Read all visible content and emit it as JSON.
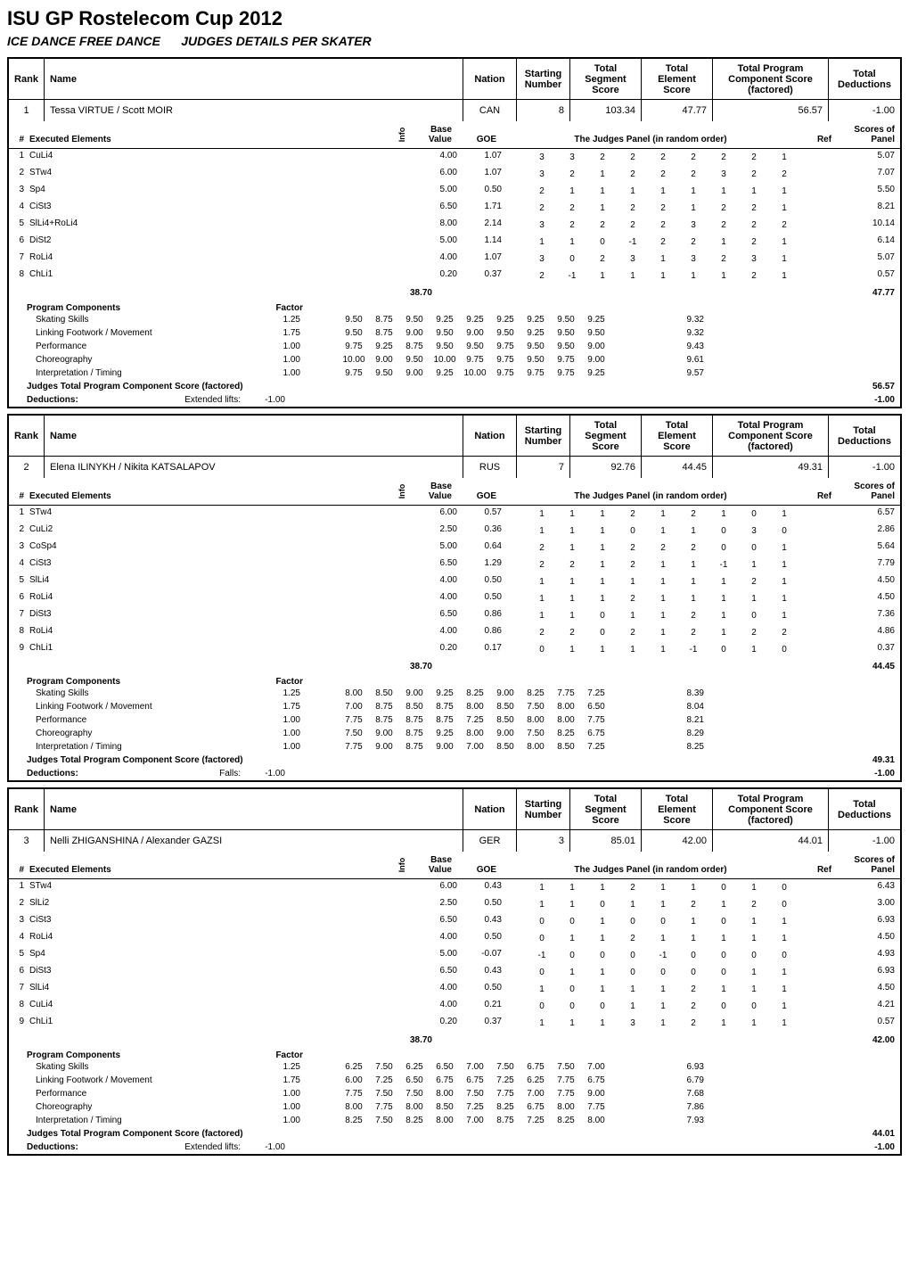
{
  "title": "ISU GP Rostelecom Cup 2012",
  "subtitle_left": "ICE DANCE FREE DANCE",
  "subtitle_right": "JUDGES DETAILS PER SKATER",
  "header_labels": {
    "rank": "Rank",
    "name": "Name",
    "nation": "Nation",
    "starting_number": "Starting Number",
    "total_segment": "Total Segment Score",
    "total_element": "Total Element Score",
    "total_pc": "Total Program Component Score (factored)",
    "total_ded": "Total Deductions"
  },
  "sub_labels": {
    "num": "#",
    "executed": "Executed Elements",
    "info": "Info",
    "base": "Base Value",
    "goe": "GOE",
    "judges": "The Judges Panel (in random order)",
    "ref": "Ref",
    "sop": "Scores of Panel"
  },
  "pc_header": "Program Components",
  "pc_factor_label": "Factor",
  "pc_total_label": "Judges Total Program Component Score (factored)",
  "deductions_label": "Deductions:",
  "colors": {
    "text": "#000000",
    "bg": "#ffffff",
    "border": "#000000"
  },
  "skaters": [
    {
      "rank": "1",
      "name": "Tessa VIRTUE / Scott MOIR",
      "nation": "CAN",
      "start_num": "8",
      "total_segment": "103.34",
      "total_element": "47.77",
      "total_pc": "56.57",
      "total_ded": "-1.00",
      "elements": [
        {
          "n": "1",
          "el": "CuLi4",
          "info": "",
          "base": "4.00",
          "goe": "1.07",
          "j": [
            "3",
            "3",
            "2",
            "2",
            "2",
            "2",
            "2",
            "2",
            "1"
          ],
          "sop": "5.07"
        },
        {
          "n": "2",
          "el": "STw4",
          "info": "",
          "base": "6.00",
          "goe": "1.07",
          "j": [
            "3",
            "2",
            "1",
            "2",
            "2",
            "2",
            "3",
            "2",
            "2"
          ],
          "sop": "7.07"
        },
        {
          "n": "3",
          "el": "Sp4",
          "info": "",
          "base": "5.00",
          "goe": "0.50",
          "j": [
            "2",
            "1",
            "1",
            "1",
            "1",
            "1",
            "1",
            "1",
            "1"
          ],
          "sop": "5.50"
        },
        {
          "n": "4",
          "el": "CiSt3",
          "info": "",
          "base": "6.50",
          "goe": "1.71",
          "j": [
            "2",
            "2",
            "1",
            "2",
            "2",
            "1",
            "2",
            "2",
            "1"
          ],
          "sop": "8.21"
        },
        {
          "n": "5",
          "el": "SlLi4+RoLi4",
          "info": "",
          "base": "8.00",
          "goe": "2.14",
          "j": [
            "3",
            "2",
            "2",
            "2",
            "2",
            "3",
            "2",
            "2",
            "2"
          ],
          "sop": "10.14"
        },
        {
          "n": "6",
          "el": "DiSt2",
          "info": "",
          "base": "5.00",
          "goe": "1.14",
          "j": [
            "1",
            "1",
            "0",
            "-1",
            "2",
            "2",
            "1",
            "2",
            "1"
          ],
          "sop": "6.14"
        },
        {
          "n": "7",
          "el": "RoLi4",
          "info": "",
          "base": "4.00",
          "goe": "1.07",
          "j": [
            "3",
            "0",
            "2",
            "3",
            "1",
            "3",
            "2",
            "3",
            "1"
          ],
          "sop": "5.07"
        },
        {
          "n": "8",
          "el": "ChLi1",
          "info": "",
          "base": "0.20",
          "goe": "0.37",
          "j": [
            "2",
            "-1",
            "1",
            "1",
            "1",
            "1",
            "1",
            "2",
            "1"
          ],
          "sop": "0.57"
        }
      ],
      "base_total": "38.70",
      "sop_total": "47.77",
      "pc": [
        {
          "label": "Skating Skills",
          "factor": "1.25",
          "j": [
            "9.50",
            "8.75",
            "9.50",
            "9.25",
            "9.25",
            "9.25",
            "9.25",
            "9.50",
            "9.25"
          ],
          "sop": "9.32"
        },
        {
          "label": "Linking Footwork / Movement",
          "factor": "1.75",
          "j": [
            "9.50",
            "8.75",
            "9.00",
            "9.50",
            "9.00",
            "9.50",
            "9.25",
            "9.50",
            "9.50"
          ],
          "sop": "9.32"
        },
        {
          "label": "Performance",
          "factor": "1.00",
          "j": [
            "9.75",
            "9.25",
            "8.75",
            "9.50",
            "9.50",
            "9.75",
            "9.50",
            "9.50",
            "9.00"
          ],
          "sop": "9.43"
        },
        {
          "label": "Choreography",
          "factor": "1.00",
          "j": [
            "10.00",
            "9.00",
            "9.50",
            "10.00",
            "9.75",
            "9.75",
            "9.50",
            "9.75",
            "9.00"
          ],
          "sop": "9.61"
        },
        {
          "label": "Interpretation / Timing",
          "factor": "1.00",
          "j": [
            "9.75",
            "9.50",
            "9.00",
            "9.25",
            "10.00",
            "9.75",
            "9.75",
            "9.75",
            "9.25"
          ],
          "sop": "9.57"
        }
      ],
      "pc_total": "56.57",
      "ded_reason": "Extended lifts:",
      "ded_value": "-1.00",
      "ded_total": "-1.00"
    },
    {
      "rank": "2",
      "name": "Elena ILINYKH / Nikita KATSALAPOV",
      "nation": "RUS",
      "start_num": "7",
      "total_segment": "92.76",
      "total_element": "44.45",
      "total_pc": "49.31",
      "total_ded": "-1.00",
      "elements": [
        {
          "n": "1",
          "el": "STw4",
          "info": "",
          "base": "6.00",
          "goe": "0.57",
          "j": [
            "1",
            "1",
            "1",
            "2",
            "1",
            "2",
            "1",
            "0",
            "1"
          ],
          "sop": "6.57"
        },
        {
          "n": "2",
          "el": "CuLi2",
          "info": "",
          "base": "2.50",
          "goe": "0.36",
          "j": [
            "1",
            "1",
            "1",
            "0",
            "1",
            "1",
            "0",
            "3",
            "0"
          ],
          "sop": "2.86"
        },
        {
          "n": "3",
          "el": "CoSp4",
          "info": "",
          "base": "5.00",
          "goe": "0.64",
          "j": [
            "2",
            "1",
            "1",
            "2",
            "2",
            "2",
            "0",
            "0",
            "1"
          ],
          "sop": "5.64"
        },
        {
          "n": "4",
          "el": "CiSt3",
          "info": "",
          "base": "6.50",
          "goe": "1.29",
          "j": [
            "2",
            "2",
            "1",
            "2",
            "1",
            "1",
            "-1",
            "1",
            "1"
          ],
          "sop": "7.79"
        },
        {
          "n": "5",
          "el": "SlLi4",
          "info": "",
          "base": "4.00",
          "goe": "0.50",
          "j": [
            "1",
            "1",
            "1",
            "1",
            "1",
            "1",
            "1",
            "2",
            "1"
          ],
          "sop": "4.50"
        },
        {
          "n": "6",
          "el": "RoLi4",
          "info": "",
          "base": "4.00",
          "goe": "0.50",
          "j": [
            "1",
            "1",
            "1",
            "2",
            "1",
            "1",
            "1",
            "1",
            "1"
          ],
          "sop": "4.50"
        },
        {
          "n": "7",
          "el": "DiSt3",
          "info": "",
          "base": "6.50",
          "goe": "0.86",
          "j": [
            "1",
            "1",
            "0",
            "1",
            "1",
            "2",
            "1",
            "0",
            "1"
          ],
          "sop": "7.36"
        },
        {
          "n": "8",
          "el": "RoLi4",
          "info": "",
          "base": "4.00",
          "goe": "0.86",
          "j": [
            "2",
            "2",
            "0",
            "2",
            "1",
            "2",
            "1",
            "2",
            "2"
          ],
          "sop": "4.86"
        },
        {
          "n": "9",
          "el": "ChLi1",
          "info": "",
          "base": "0.20",
          "goe": "0.17",
          "j": [
            "0",
            "1",
            "1",
            "1",
            "1",
            "-1",
            "0",
            "1",
            "0"
          ],
          "sop": "0.37"
        }
      ],
      "base_total": "38.70",
      "sop_total": "44.45",
      "pc": [
        {
          "label": "Skating Skills",
          "factor": "1.25",
          "j": [
            "8.00",
            "8.50",
            "9.00",
            "9.25",
            "8.25",
            "9.00",
            "8.25",
            "7.75",
            "7.25"
          ],
          "sop": "8.39"
        },
        {
          "label": "Linking Footwork / Movement",
          "factor": "1.75",
          "j": [
            "7.00",
            "8.75",
            "8.50",
            "8.75",
            "8.00",
            "8.50",
            "7.50",
            "8.00",
            "6.50"
          ],
          "sop": "8.04"
        },
        {
          "label": "Performance",
          "factor": "1.00",
          "j": [
            "7.75",
            "8.75",
            "8.75",
            "8.75",
            "7.25",
            "8.50",
            "8.00",
            "8.00",
            "7.75"
          ],
          "sop": "8.21"
        },
        {
          "label": "Choreography",
          "factor": "1.00",
          "j": [
            "7.50",
            "9.00",
            "8.75",
            "9.25",
            "8.00",
            "9.00",
            "7.50",
            "8.25",
            "6.75"
          ],
          "sop": "8.29"
        },
        {
          "label": "Interpretation / Timing",
          "factor": "1.00",
          "j": [
            "7.75",
            "9.00",
            "8.75",
            "9.00",
            "7.00",
            "8.50",
            "8.00",
            "8.50",
            "7.25"
          ],
          "sop": "8.25"
        }
      ],
      "pc_total": "49.31",
      "ded_reason": "Falls:",
      "ded_value": "-1.00",
      "ded_total": "-1.00"
    },
    {
      "rank": "3",
      "name": "Nelli ZHIGANSHINA / Alexander GAZSI",
      "nation": "GER",
      "start_num": "3",
      "total_segment": "85.01",
      "total_element": "42.00",
      "total_pc": "44.01",
      "total_ded": "-1.00",
      "elements": [
        {
          "n": "1",
          "el": "STw4",
          "info": "",
          "base": "6.00",
          "goe": "0.43",
          "j": [
            "1",
            "1",
            "1",
            "2",
            "1",
            "1",
            "0",
            "1",
            "0"
          ],
          "sop": "6.43"
        },
        {
          "n": "2",
          "el": "SlLi2",
          "info": "",
          "base": "2.50",
          "goe": "0.50",
          "j": [
            "1",
            "1",
            "0",
            "1",
            "1",
            "2",
            "1",
            "2",
            "0"
          ],
          "sop": "3.00"
        },
        {
          "n": "3",
          "el": "CiSt3",
          "info": "",
          "base": "6.50",
          "goe": "0.43",
          "j": [
            "0",
            "0",
            "1",
            "0",
            "0",
            "1",
            "0",
            "1",
            "1"
          ],
          "sop": "6.93"
        },
        {
          "n": "4",
          "el": "RoLi4",
          "info": "",
          "base": "4.00",
          "goe": "0.50",
          "j": [
            "0",
            "1",
            "1",
            "2",
            "1",
            "1",
            "1",
            "1",
            "1"
          ],
          "sop": "4.50"
        },
        {
          "n": "5",
          "el": "Sp4",
          "info": "",
          "base": "5.00",
          "goe": "-0.07",
          "j": [
            "-1",
            "0",
            "0",
            "0",
            "-1",
            "0",
            "0",
            "0",
            "0"
          ],
          "sop": "4.93"
        },
        {
          "n": "6",
          "el": "DiSt3",
          "info": "",
          "base": "6.50",
          "goe": "0.43",
          "j": [
            "0",
            "1",
            "1",
            "0",
            "0",
            "0",
            "0",
            "1",
            "1"
          ],
          "sop": "6.93"
        },
        {
          "n": "7",
          "el": "SlLi4",
          "info": "",
          "base": "4.00",
          "goe": "0.50",
          "j": [
            "1",
            "0",
            "1",
            "1",
            "1",
            "2",
            "1",
            "1",
            "1"
          ],
          "sop": "4.50"
        },
        {
          "n": "8",
          "el": "CuLi4",
          "info": "",
          "base": "4.00",
          "goe": "0.21",
          "j": [
            "0",
            "0",
            "0",
            "1",
            "1",
            "2",
            "0",
            "0",
            "1"
          ],
          "sop": "4.21"
        },
        {
          "n": "9",
          "el": "ChLi1",
          "info": "",
          "base": "0.20",
          "goe": "0.37",
          "j": [
            "1",
            "1",
            "1",
            "3",
            "1",
            "2",
            "1",
            "1",
            "1"
          ],
          "sop": "0.57"
        }
      ],
      "base_total": "38.70",
      "sop_total": "42.00",
      "pc": [
        {
          "label": "Skating Skills",
          "factor": "1.25",
          "j": [
            "6.25",
            "7.50",
            "6.25",
            "6.50",
            "7.00",
            "7.50",
            "6.75",
            "7.50",
            "7.00"
          ],
          "sop": "6.93"
        },
        {
          "label": "Linking Footwork / Movement",
          "factor": "1.75",
          "j": [
            "6.00",
            "7.25",
            "6.50",
            "6.75",
            "6.75",
            "7.25",
            "6.25",
            "7.75",
            "6.75"
          ],
          "sop": "6.79"
        },
        {
          "label": "Performance",
          "factor": "1.00",
          "j": [
            "7.75",
            "7.50",
            "7.50",
            "8.00",
            "7.50",
            "7.75",
            "7.00",
            "7.75",
            "9.00"
          ],
          "sop": "7.68"
        },
        {
          "label": "Choreography",
          "factor": "1.00",
          "j": [
            "8.00",
            "7.75",
            "8.00",
            "8.50",
            "7.25",
            "8.25",
            "6.75",
            "8.00",
            "7.75"
          ],
          "sop": "7.86"
        },
        {
          "label": "Interpretation / Timing",
          "factor": "1.00",
          "j": [
            "8.25",
            "7.50",
            "8.25",
            "8.00",
            "7.00",
            "8.75",
            "7.25",
            "8.25",
            "8.00"
          ],
          "sop": "7.93"
        }
      ],
      "pc_total": "44.01",
      "ded_reason": "Extended lifts:",
      "ded_value": "-1.00",
      "ded_total": "-1.00"
    }
  ]
}
